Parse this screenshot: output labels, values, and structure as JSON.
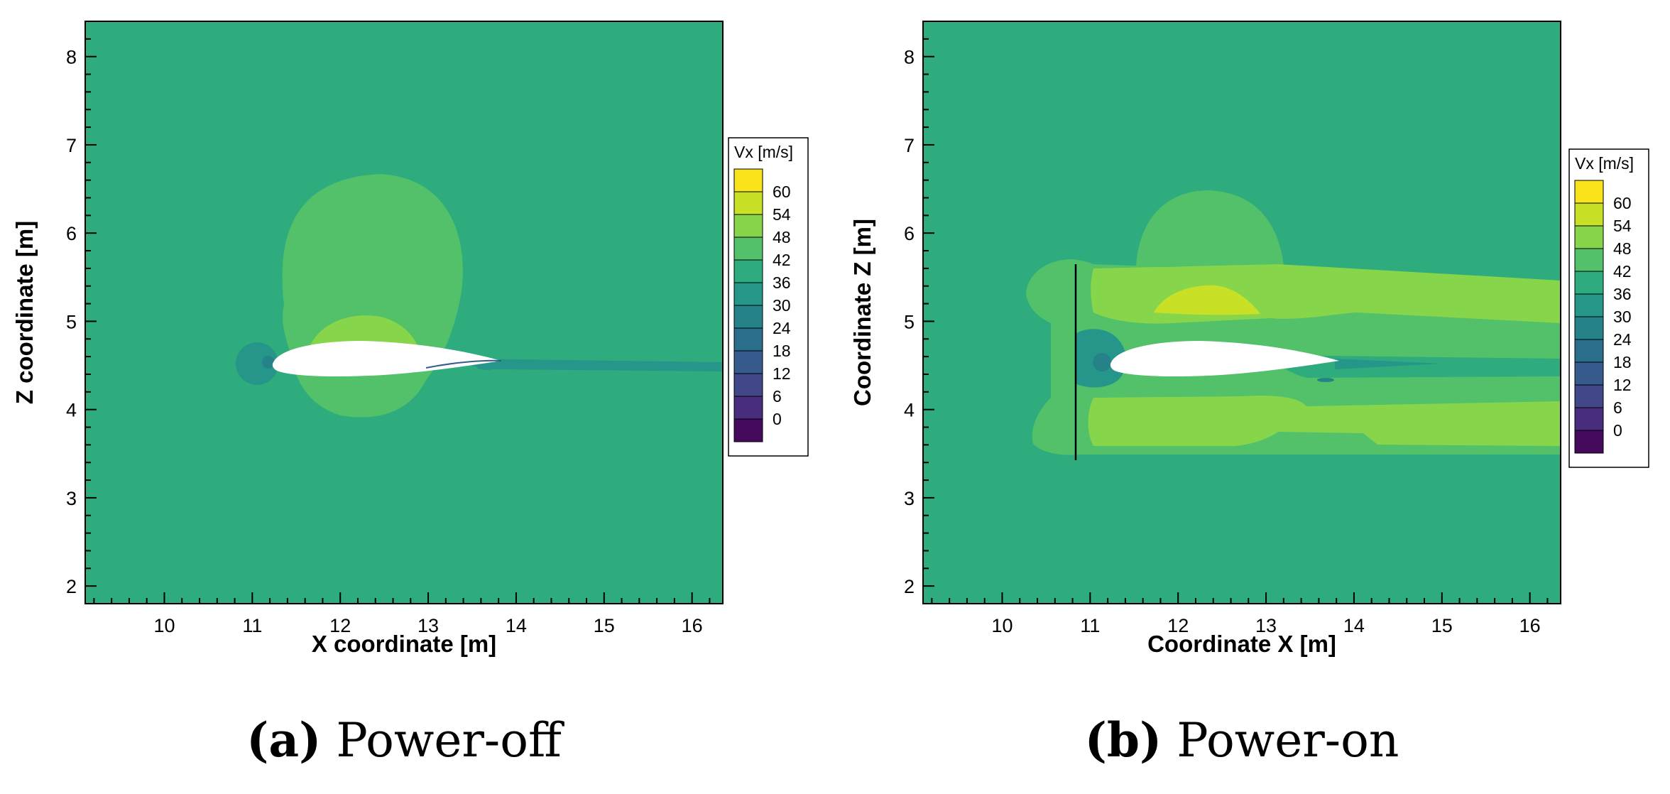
{
  "colors": {
    "background_42_48": "#2fac7d",
    "band_48_54": "#52c16a",
    "band_54_60": "#87d54a",
    "band_60_66": "#c8e126",
    "band_36_42": "#26968a",
    "band_30_36": "#268289",
    "band_24_30": "#2b6e8c",
    "band_18_24": "#365b8c",
    "band_12_18": "#414789",
    "band_6_12": "#482d7f",
    "band_0_6": "#460a5d",
    "band_66_plus": "#f9e41c",
    "airfoil": "#ffffff"
  },
  "chart_data": [
    {
      "type": "contour",
      "panel": "a",
      "caption_letter": "(a)",
      "caption_text": "Power-off",
      "xlabel": "X coordinate [m]",
      "ylabel": "Z coordinate [m]",
      "xlim": [
        9.1,
        16.35
      ],
      "ylim": [
        1.8,
        8.4
      ],
      "xticks": [
        10,
        11,
        12,
        13,
        14,
        15,
        16
      ],
      "yticks": [
        2,
        3,
        4,
        5,
        6,
        7,
        8
      ],
      "variable": "Vx [m/s]",
      "levels": [
        0,
        6,
        12,
        18,
        24,
        30,
        36,
        42,
        48,
        54,
        60
      ],
      "freestream": 42,
      "airfoil": {
        "leading_edge": [
          11.25,
          4.55
        ],
        "trailing_edge": [
          13.9,
          4.53
        ]
      },
      "regions": [
        {
          "level": 48,
          "desc": "acceleration bubble above airfoil",
          "center": [
            12.35,
            5.25
          ]
        },
        {
          "level": 54,
          "desc": "peak suction region",
          "center": [
            12.2,
            4.85
          ]
        },
        {
          "level": 36,
          "desc": "stagnation at leading edge",
          "center": [
            11.1,
            4.52
          ]
        },
        {
          "level": 36,
          "desc": "wake",
          "x_range": [
            13.9,
            16.35
          ],
          "z": 4.48
        }
      ]
    },
    {
      "type": "contour",
      "panel": "b",
      "caption_letter": "(b)",
      "caption_text": "Power-on",
      "xlabel": "Coordinate X [m]",
      "ylabel": "Coordinate Z [m]",
      "xlim": [
        9.1,
        16.35
      ],
      "ylim": [
        1.8,
        8.4
      ],
      "xticks": [
        10,
        11,
        12,
        13,
        14,
        15,
        16
      ],
      "yticks": [
        2,
        3,
        4,
        5,
        6,
        7,
        8
      ],
      "variable": "Vx [m/s]",
      "levels": [
        0,
        6,
        12,
        18,
        24,
        30,
        36,
        42,
        48,
        54,
        60
      ],
      "freestream": 42,
      "propeller_disk": {
        "x": 10.85,
        "z_range": [
          3.45,
          5.62
        ]
      },
      "airfoil": {
        "leading_edge": [
          11.25,
          4.55
        ],
        "trailing_edge": [
          13.9,
          4.53
        ]
      },
      "regions": [
        {
          "level": 48,
          "desc": "slipstream envelope",
          "x_range": [
            10.6,
            16.35
          ],
          "z_range": [
            3.5,
            5.6
          ]
        },
        {
          "level": 54,
          "desc": "upper slipstream jet",
          "x_range": [
            11.4,
            16.35
          ],
          "z_range": [
            4.9,
            5.55
          ]
        },
        {
          "level": 54,
          "desc": "lower slipstream jet",
          "x_range": [
            11.4,
            16.35
          ],
          "z_range": [
            3.55,
            4.15
          ]
        },
        {
          "level": 60,
          "desc": "peak above airfoil",
          "center": [
            12.3,
            5.15
          ]
        },
        {
          "level": 36,
          "desc": "stagnation behind propeller",
          "center": [
            11.1,
            4.52
          ]
        }
      ]
    }
  ]
}
